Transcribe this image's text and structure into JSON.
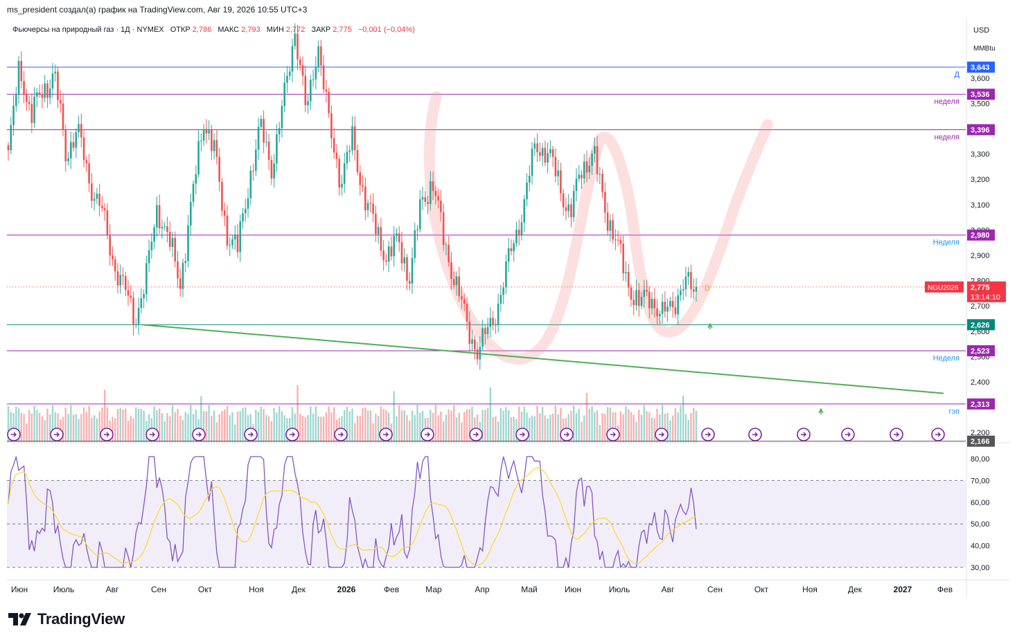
{
  "header": {
    "author_line": "ms_president создал(a) график на TradingView.com, Авг 19, 2026 10:55 UTC+3"
  },
  "legend": {
    "symbol": "Фьючерсы на природный газ · 1Д · NYMEX",
    "o_label": "ОТКР",
    "o_value": "2,786",
    "h_label": "МАКС",
    "h_value": "2,793",
    "l_label": "МИН",
    "l_value": "2,772",
    "c_label": "ЗАКР",
    "c_value": "2,775",
    "change": "−0,001 (−0,04%)"
  },
  "price_scale": {
    "currency": "USD",
    "unit": "MMBtu",
    "ticks": [
      {
        "v": 3.6,
        "label": "3,600"
      },
      {
        "v": 3.5,
        "label": "3,500"
      },
      {
        "v": 3.3,
        "label": "3,300"
      },
      {
        "v": 3.2,
        "label": "3,200"
      },
      {
        "v": 3.1,
        "label": "3,100"
      },
      {
        "v": 3.0,
        "label": "3,000"
      },
      {
        "v": 2.9,
        "label": "2,900"
      },
      {
        "v": 2.8,
        "label": "2,800"
      },
      {
        "v": 2.7,
        "label": "2,700"
      },
      {
        "v": 2.6,
        "label": "2,600"
      },
      {
        "v": 2.5,
        "label": "2,500"
      },
      {
        "v": 2.4,
        "label": "2,400"
      },
      {
        "v": 2.2,
        "label": "2,200"
      }
    ]
  },
  "levels": [
    {
      "value": 3.643,
      "label": "3,643",
      "tag": "Д",
      "color": "#2962ff",
      "tagcolor": "#2962ff"
    },
    {
      "value": 3.536,
      "label": "3,536",
      "tag": "неделя",
      "color": "#9c27b0",
      "tagcolor": "#9c27b0"
    },
    {
      "value": 3.396,
      "label": "3,396",
      "tag": "неделя",
      "color": "#9c27b0",
      "tagcolor": "#9c27b0"
    },
    {
      "value": 2.98,
      "label": "2,980",
      "tag": "Неделя",
      "color": "#9c27b0",
      "tagcolor": "#2196f3"
    },
    {
      "value": 2.626,
      "label": "2,626",
      "tag": "",
      "color": "#00897b",
      "tagcolor": "#00897b"
    },
    {
      "value": 2.523,
      "label": "2,523",
      "tag": "Неделя",
      "color": "#9c27b0",
      "tagcolor": "#2196f3"
    },
    {
      "value": 2.313,
      "label": "2,313",
      "tag": "гэп",
      "color": "#9c27b0",
      "tagcolor": "#2196f3"
    },
    {
      "value": 2.166,
      "label": "2,166",
      "tag": "",
      "color": "#555555",
      "tagcolor": "#555555"
    }
  ],
  "last_price": {
    "value": 2.775,
    "symbol": "NGU2026",
    "label": "2,775",
    "countdown": "13:14:10",
    "color": "#f23645"
  },
  "rsi_scale": {
    "ticks": [
      {
        "v": 80,
        "label": "80,00"
      },
      {
        "v": 70,
        "label": "70,00"
      },
      {
        "v": 60,
        "label": "60,00"
      },
      {
        "v": 50,
        "label": "50,00"
      },
      {
        "v": 40,
        "label": "40,00"
      },
      {
        "v": 30,
        "label": "30,00"
      }
    ]
  },
  "time_axis": [
    {
      "label": "Июн",
      "bold": false
    },
    {
      "label": "Июль",
      "bold": false
    },
    {
      "label": "Авг",
      "bold": false
    },
    {
      "label": "Сен",
      "bold": false
    },
    {
      "label": "Окт",
      "bold": false
    },
    {
      "label": "Ноя",
      "bold": false
    },
    {
      "label": "Дек",
      "bold": false
    },
    {
      "label": "2026",
      "bold": true
    },
    {
      "label": "Фев",
      "bold": false
    },
    {
      "label": "Мар",
      "bold": false
    },
    {
      "label": "Апр",
      "bold": false
    },
    {
      "label": "Май",
      "bold": false
    },
    {
      "label": "Июн",
      "bold": false
    },
    {
      "label": "Июль",
      "bold": false
    },
    {
      "label": "Авг",
      "bold": false
    },
    {
      "label": "Сен",
      "bold": false
    },
    {
      "label": "Окт",
      "bold": false
    },
    {
      "label": "Ноя",
      "bold": false
    },
    {
      "label": "Дек",
      "bold": false
    },
    {
      "label": "2027",
      "bold": true
    },
    {
      "label": "Фев",
      "bold": false
    }
  ],
  "chart_data": {
    "type": "candlestick",
    "title": "Фьючерсы на природный газ · 1Д · NYMEX",
    "ylim": [
      2.16,
      3.8
    ],
    "y_ticks": [
      "2,200",
      "2,400",
      "2,500",
      "2,600",
      "2,700",
      "2,800",
      "2,900",
      "3,000",
      "3,100",
      "3,200",
      "3,300",
      "3,500",
      "3,600"
    ],
    "x_ticks": [
      "Июн",
      "Июль",
      "Авг",
      "Сен",
      "Окт",
      "Ноя",
      "Дек",
      "2026",
      "Фев",
      "Мар",
      "Апр",
      "Май",
      "Июн",
      "Июль",
      "Авг",
      "Сен",
      "Окт",
      "Ноя",
      "Дек",
      "2027",
      "Фев"
    ],
    "price_path": [
      3.3,
      3.65,
      3.45,
      3.55,
      3.62,
      3.3,
      3.4,
      3.2,
      3.1,
      2.9,
      2.78,
      2.65,
      2.8,
      3.1,
      2.95,
      2.8,
      3.1,
      3.45,
      3.3,
      3.0,
      2.92,
      3.2,
      3.4,
      3.25,
      3.5,
      3.8,
      3.45,
      3.75,
      3.4,
      3.2,
      3.35,
      3.15,
      3.0,
      2.9,
      2.95,
      2.82,
      3.1,
      3.2,
      2.95,
      2.8,
      2.62,
      2.52,
      2.62,
      2.75,
      2.95,
      3.1,
      3.35,
      3.3,
      3.2,
      3.05,
      3.25,
      3.3,
      3.1,
      2.95,
      2.8,
      2.7,
      2.75,
      2.65,
      2.72,
      2.78,
      2.775
    ],
    "levels": [
      3.643,
      3.536,
      3.396,
      2.98,
      2.626,
      2.523,
      2.313,
      2.166
    ],
    "trendline": {
      "from_value": 2.626,
      "to_value": 2.355
    },
    "last": 2.775,
    "rsi": {
      "ylim": [
        28,
        82
      ],
      "bands": [
        30,
        50,
        70
      ],
      "last": 47.5
    }
  }
}
